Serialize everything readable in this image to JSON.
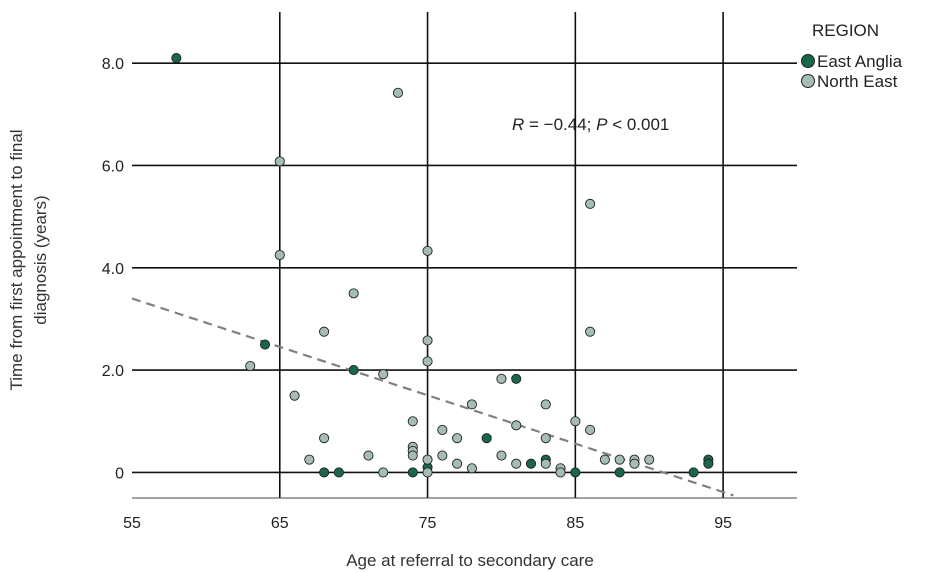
{
  "chart_data": {
    "type": "scatter",
    "xlabel": "Age at referral to secondary care",
    "ylabel_lines": [
      "Time from first appointment to final",
      "diagnosis (years)"
    ],
    "xlim": [
      55,
      100
    ],
    "ylim": [
      -0.5,
      9.0
    ],
    "x_ticks": [
      55,
      65,
      75,
      85,
      95
    ],
    "x_tick_labels": [
      "55",
      "65",
      "75",
      "85",
      "95"
    ],
    "y_ticks": [
      0,
      2,
      4,
      6,
      8
    ],
    "y_tick_labels": [
      "0",
      "2.0",
      "4.0",
      "6.0",
      "8.0"
    ],
    "grid": true,
    "legend": {
      "title": "REGION",
      "placement": "top-right"
    },
    "annotation": {
      "r_symbol": "R",
      "r_value": " = −0.44; ",
      "p_symbol": "P",
      "p_value": " < 0.001"
    },
    "trendline": {
      "x": [
        55,
        95.7
      ],
      "y": [
        3.4,
        -0.45
      ],
      "color": "#808080",
      "style": "dashed"
    },
    "series": [
      {
        "name": "East Anglia",
        "color": "#1a6648",
        "points": [
          [
            58,
            8.1
          ],
          [
            64,
            2.5
          ],
          [
            68,
            0.0
          ],
          [
            69,
            0.0
          ],
          [
            70,
            2.0
          ],
          [
            74,
            0.0
          ],
          [
            75,
            0.1
          ],
          [
            79,
            0.67
          ],
          [
            81,
            1.83
          ],
          [
            82,
            0.17
          ],
          [
            83,
            0.25
          ],
          [
            85,
            0.0
          ],
          [
            88,
            0.0
          ],
          [
            93,
            0.0
          ],
          [
            94,
            0.25
          ],
          [
            94,
            0.17
          ]
        ]
      },
      {
        "name": "North East",
        "color": "#a6bdb4",
        "points": [
          [
            63,
            2.08
          ],
          [
            65,
            6.08
          ],
          [
            65,
            4.25
          ],
          [
            66,
            1.5
          ],
          [
            67,
            0.25
          ],
          [
            68,
            2.75
          ],
          [
            68,
            0.67
          ],
          [
            70,
            3.5
          ],
          [
            71,
            0.33
          ],
          [
            72,
            1.92
          ],
          [
            72,
            0.0
          ],
          [
            73,
            7.42
          ],
          [
            74,
            1.0
          ],
          [
            74,
            0.5
          ],
          [
            74,
            0.42
          ],
          [
            74,
            0.33
          ],
          [
            75,
            4.33
          ],
          [
            75,
            2.58
          ],
          [
            75,
            2.17
          ],
          [
            75,
            0.25
          ],
          [
            75,
            0.0
          ],
          [
            76,
            0.83
          ],
          [
            76,
            0.33
          ],
          [
            77,
            0.67
          ],
          [
            77,
            0.17
          ],
          [
            78,
            1.33
          ],
          [
            78,
            0.08
          ],
          [
            80,
            1.83
          ],
          [
            80,
            0.33
          ],
          [
            81,
            0.92
          ],
          [
            81,
            0.17
          ],
          [
            83,
            1.33
          ],
          [
            83,
            0.67
          ],
          [
            83,
            0.17
          ],
          [
            84,
            0.08
          ],
          [
            84,
            0.0
          ],
          [
            85,
            1.0
          ],
          [
            86,
            5.25
          ],
          [
            86,
            2.75
          ],
          [
            86,
            0.83
          ],
          [
            87,
            0.25
          ],
          [
            88,
            0.25
          ],
          [
            89,
            0.25
          ],
          [
            89,
            0.17
          ],
          [
            90,
            0.25
          ]
        ]
      }
    ]
  }
}
